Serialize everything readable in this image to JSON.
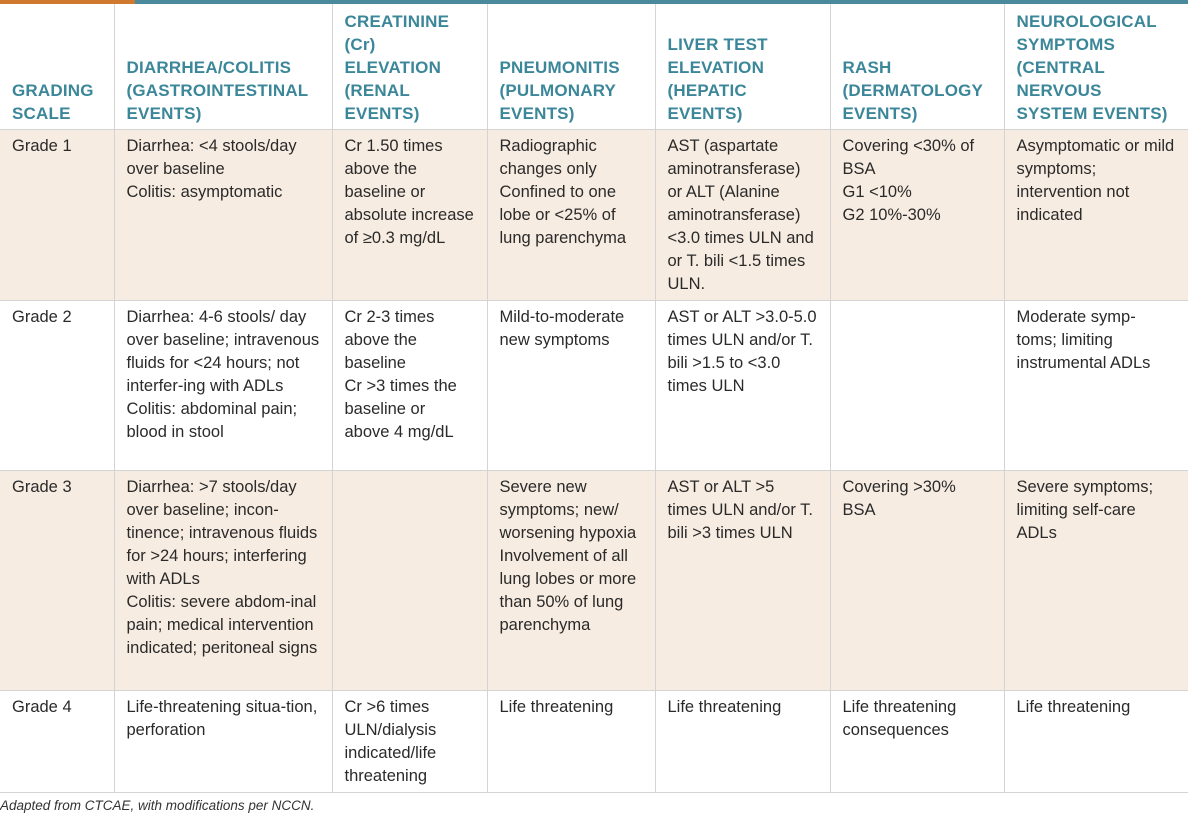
{
  "colors": {
    "accent_orange": "#d0782e",
    "accent_teal": "#4a8a9c",
    "header_text": "#3b8799",
    "row_shade": "#f7ece1"
  },
  "headers": [
    "GRADING SCALE",
    "DIARRHEA/COLITIS (GASTROINTESTINAL EVENTS)",
    "CREATININE (Cr) ELEVATION (RENAL EVENTS)",
    "PNEUMONITIS (PULMONARY EVENTS)",
    "LIVER TEST ELEVATION (HEPATIC EVENTS)",
    "RASH (DERMATOLOGY EVENTS)",
    "NEUROLOGICAL SYMPTOMS (CENTRAL NERVOUS SYSTEM EVENTS)"
  ],
  "rows": [
    {
      "grade": "Grade 1",
      "cells": [
        [
          "Diarrhea: <4 stools/day over baseline",
          "Colitis: asymptomatic"
        ],
        [
          "Cr 1.50 times above the baseline or absolute increase of ≥0.3 mg/dL"
        ],
        [
          "Radiographic changes only",
          "Confined to one lobe or <25% of lung parenchyma"
        ],
        [
          "AST (aspartate aminotransferase) or ALT (Alanine aminotransferase) <3.0 times ULN and or T. bili <1.5 times ULN."
        ],
        [
          "Covering <30% of BSA",
          "G1 <10%",
          "G2 10%-30%"
        ],
        [
          "Asymptomatic or mild symptoms; intervention not indicated"
        ]
      ]
    },
    {
      "grade": "Grade 2",
      "cells": [
        [
          "Diarrhea: 4-6 stools/ day over baseline; intravenous fluids for <24 hours; not interfer-ing with ADLs",
          "Colitis: abdominal pain; blood in stool"
        ],
        [
          "Cr 2-3 times above the baseline",
          "Cr >3 times the baseline or above 4 mg/dL"
        ],
        [
          "Mild-to-moderate new symptoms"
        ],
        [
          "AST or ALT >3.0-5.0 times ULN and/or T. bili >1.5 to <3.0 times ULN"
        ],
        [],
        [
          "Moderate symp-toms; limiting instrumental ADLs"
        ]
      ]
    },
    {
      "grade": "Grade 3",
      "cells": [
        [
          "Diarrhea: >7 stools/day over baseline; incon-tinence; intravenous fluids for >24 hours; interfering with ADLs",
          "Colitis: severe abdom-inal pain; medical intervention indicated; peritoneal signs"
        ],
        [],
        [
          "Severe new symptoms; new/ worsening hypoxia",
          "Involvement of all lung lobes or more than 50% of lung parenchyma"
        ],
        [
          "AST or ALT >5 times ULN and/or T. bili >3 times ULN"
        ],
        [
          "Covering >30% BSA"
        ],
        [
          "Severe symptoms; limiting self-care ADLs"
        ]
      ]
    },
    {
      "grade": "Grade 4",
      "cells": [
        [
          "Life-threatening situa-tion, perforation"
        ],
        [
          "Cr >6 times ULN/dialysis indicated/life threatening"
        ],
        [
          "Life threatening"
        ],
        [
          "Life threatening"
        ],
        [
          "Life threatening consequences"
        ],
        [
          "Life threatening"
        ]
      ]
    }
  ],
  "caption": "Adapted from CTCAE, with modifications per NCCN."
}
